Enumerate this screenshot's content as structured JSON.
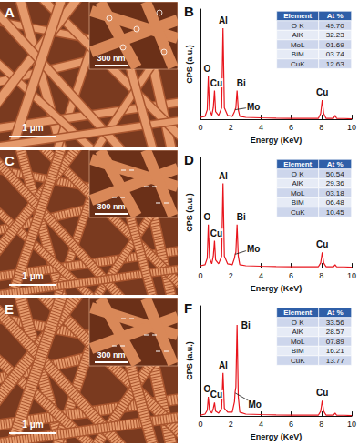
{
  "images": [
    {
      "label": "A",
      "scale_bar": "1 μm",
      "inset_scale_bar": "300 nm"
    },
    {
      "label": "C",
      "scale_bar": "1 μm",
      "inset_scale_bar": "300 nm"
    },
    {
      "label": "E",
      "scale_bar": "1 μm",
      "inset_scale_bar": "300 nm"
    }
  ],
  "chart_data": [
    {
      "type": "line",
      "title": "B",
      "color": "#e8141c",
      "xlabel": "Energy (KeV)",
      "ylabel": "CPS (a.u.)",
      "xlim": [
        0,
        10
      ],
      "xticks": [
        0,
        2,
        4,
        6,
        8,
        10
      ],
      "ylim": [
        0,
        115
      ],
      "tick_labels": "x",
      "x": [
        0,
        0.3,
        0.45,
        0.52,
        0.6,
        0.75,
        0.85,
        0.93,
        1.0,
        1.2,
        1.4,
        1.49,
        1.58,
        1.8,
        2.1,
        2.25,
        2.29,
        2.34,
        2.42,
        2.5,
        2.6,
        3.0,
        4.0,
        5.0,
        6.0,
        7.0,
        7.8,
        7.95,
        8.05,
        8.15,
        8.3,
        8.8,
        8.9,
        9.0,
        9.5,
        10
      ],
      "values": [
        2,
        3,
        10,
        45,
        10,
        4,
        12,
        30,
        8,
        4,
        12,
        95,
        12,
        4,
        3,
        8,
        10,
        12,
        30,
        10,
        3,
        2,
        1.5,
        1.2,
        1,
        1,
        1,
        6,
        20,
        6,
        1,
        1,
        4,
        1,
        0.8,
        0.5
      ],
      "annotations": [
        {
          "text": "O",
          "x": 0.45,
          "y": 53
        },
        {
          "text": "Cu",
          "x": 1.05,
          "y": 38
        },
        {
          "text": "Al",
          "x": 1.5,
          "y": 103
        },
        {
          "text": "Bi",
          "x": 2.7,
          "y": 38
        },
        {
          "text": "Mo",
          "x": 3.5,
          "y": 13,
          "points_to": [
            2.3,
            10
          ]
        },
        {
          "text": "Cu",
          "x": 8.05,
          "y": 28
        }
      ],
      "table": {
        "header": [
          "Element",
          "At %"
        ],
        "rows": [
          [
            "O K",
            "49.70"
          ],
          [
            "AlK",
            "32.23"
          ],
          [
            "MoL",
            "01.69"
          ],
          [
            "BiM",
            "03.74"
          ],
          [
            "CuK",
            "12.63"
          ]
        ]
      }
    },
    {
      "type": "line",
      "title": "D",
      "color": "#e8141c",
      "xlabel": "Energy (KeV)",
      "ylabel": "CPS (a.u.)",
      "xlim": [
        0,
        10
      ],
      "xticks": [
        0,
        2,
        4,
        6,
        8,
        10
      ],
      "ylim": [
        0,
        115
      ],
      "tick_labels": "x",
      "x": [
        0,
        0.3,
        0.45,
        0.52,
        0.6,
        0.75,
        0.85,
        0.93,
        1.0,
        1.2,
        1.4,
        1.49,
        1.58,
        1.8,
        2.1,
        2.25,
        2.29,
        2.34,
        2.42,
        2.5,
        2.6,
        3.0,
        4.0,
        5.0,
        6.0,
        7.0,
        7.8,
        7.95,
        8.05,
        8.15,
        8.3,
        8.8,
        8.9,
        9.0,
        9.5,
        10
      ],
      "values": [
        2,
        3,
        10,
        45,
        10,
        4,
        12,
        28,
        8,
        4,
        12,
        88,
        12,
        4,
        3,
        10,
        14,
        16,
        45,
        12,
        3,
        2,
        1.5,
        1.2,
        1,
        1,
        1,
        5,
        16,
        5,
        1,
        1,
        3,
        1,
        0.8,
        0.5
      ],
      "annotations": [
        {
          "text": "O",
          "x": 0.45,
          "y": 53
        },
        {
          "text": "Cu",
          "x": 1.05,
          "y": 36
        },
        {
          "text": "Al",
          "x": 1.5,
          "y": 96
        },
        {
          "text": "Bi",
          "x": 2.7,
          "y": 53
        },
        {
          "text": "Mo",
          "x": 3.5,
          "y": 20,
          "points_to": [
            2.3,
            14
          ]
        },
        {
          "text": "Cu",
          "x": 8.05,
          "y": 24
        }
      ],
      "table": {
        "header": [
          "Element",
          "At %"
        ],
        "rows": [
          [
            "O K",
            "50.54"
          ],
          [
            "AlK",
            "29.36"
          ],
          [
            "MoL",
            "03.18"
          ],
          [
            "BiM",
            "06.48"
          ],
          [
            "CuK",
            "10.45"
          ]
        ]
      }
    },
    {
      "type": "line",
      "title": "F",
      "color": "#e8141c",
      "xlabel": "Energy (KeV)",
      "ylabel": "CPS (a.u.)",
      "xlim": [
        0,
        10
      ],
      "xticks": [
        0,
        2,
        4,
        6,
        8,
        10
      ],
      "ylim": [
        0,
        115
      ],
      "tick_labels": "x",
      "x": [
        0,
        0.3,
        0.45,
        0.52,
        0.6,
        0.75,
        0.85,
        0.93,
        1.0,
        1.2,
        1.4,
        1.49,
        1.58,
        1.8,
        2.1,
        2.25,
        2.29,
        2.34,
        2.42,
        2.5,
        2.6,
        3.0,
        4.0,
        5.0,
        6.0,
        7.0,
        7.8,
        7.95,
        8.05,
        8.15,
        8.3,
        8.8,
        8.9,
        9.0,
        9.5,
        10
      ],
      "values": [
        1,
        2,
        6,
        20,
        6,
        3,
        8,
        14,
        5,
        3,
        8,
        45,
        8,
        4,
        4,
        15,
        25,
        30,
        95,
        20,
        4,
        2,
        1.5,
        1.2,
        1,
        1,
        1,
        5,
        16,
        5,
        1,
        1,
        3,
        1,
        0.8,
        0.5
      ],
      "annotations": [
        {
          "text": "O",
          "x": 0.45,
          "y": 28
        },
        {
          "text": "Cu",
          "x": 1.05,
          "y": 22
        },
        {
          "text": "Al",
          "x": 1.5,
          "y": 53
        },
        {
          "text": "Bi",
          "x": 3.0,
          "y": 95
        },
        {
          "text": "Mo",
          "x": 3.6,
          "y": 12,
          "points_to": [
            2.3,
            24
          ]
        },
        {
          "text": "Cu",
          "x": 8.05,
          "y": 24
        }
      ],
      "table": {
        "header": [
          "Element",
          "At %"
        ],
        "rows": [
          [
            "O K",
            "33.56"
          ],
          [
            "AlK",
            "28.57"
          ],
          [
            "MoL",
            "07.89"
          ],
          [
            "BiM",
            "16.21"
          ],
          [
            "CuK",
            "13.77"
          ]
        ]
      }
    }
  ]
}
